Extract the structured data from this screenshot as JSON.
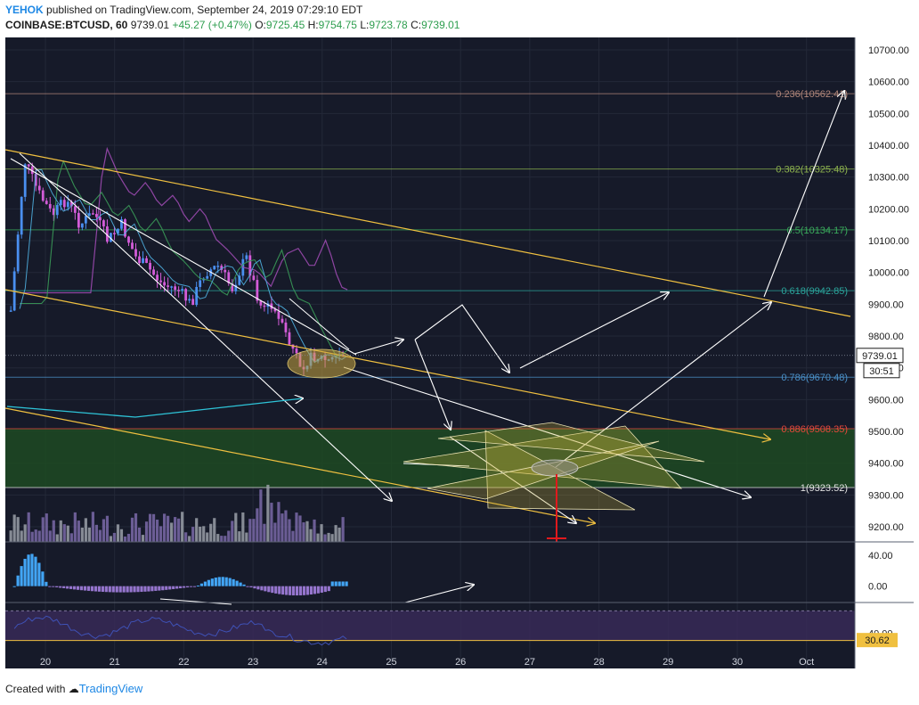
{
  "header": {
    "publisher": "YEHOK",
    "published_text": "published on TradingView.com, September 24, 2019 07:29:10 EDT",
    "symbol": "COINBASE:BTCUSD, 60",
    "last": "9739.01",
    "change": "+45.27 (+0.47%)",
    "open_label": "O:",
    "open": "9725.45",
    "high_label": "H:",
    "high": "9754.75",
    "low_label": "L:",
    "low": "9723.78",
    "close_label": "C:",
    "close": "9739.01"
  },
  "footer": {
    "created_with": "Created with",
    "brand": "TradingView"
  },
  "colors": {
    "background": "#161a29",
    "up_candle": "#4a8ff0",
    "down_candle": "#d35cd8",
    "trendline": "#f0c040",
    "arrow": "#ffffff",
    "target_zone": "#1d4a22",
    "macd_pos": "#42a5f5",
    "macd_neg": "#9575cd",
    "rsi": "#3f51b5",
    "red_marker": "#e0191d"
  },
  "chart_data": {
    "type": "candlestick",
    "title": "",
    "x_ticks": [
      "20",
      "21",
      "22",
      "23",
      "24",
      "25",
      "26",
      "27",
      "28",
      "29",
      "30",
      "Oct"
    ],
    "y_ticks": [
      "10700.00",
      "10600.00",
      "10500.00",
      "10400.00",
      "10300.00",
      "10200.00",
      "10100.00",
      "10000.00",
      "9900.00",
      "9800.00",
      "9700.00",
      "9600.00",
      "9500.00",
      "9400.00",
      "9300.00",
      "9200.00"
    ],
    "y_tick_values": [
      10700,
      10600,
      10500,
      10400,
      10300,
      10200,
      10100,
      10000,
      9900,
      9800,
      9700,
      9600,
      9500,
      9400,
      9300,
      9200
    ],
    "ylim": [
      9150,
      10740
    ],
    "price_label": "9739.01",
    "price_value": 9739.01,
    "countdown_label": "30:51",
    "fib_levels": [
      {
        "label": "0.236(10562.41)",
        "value": 10562.41,
        "color": "#b0867a"
      },
      {
        "label": "0.382(10325.48)",
        "value": 10325.48,
        "color": "#8bb04e"
      },
      {
        "label": "0.5(10134.17)",
        "value": 10134.17,
        "color": "#3aaa5c"
      },
      {
        "label": "0.618(9942.85)",
        "value": 9942.85,
        "color": "#2aa39a"
      },
      {
        "label": "0.786(9670.48)",
        "value": 9670.48,
        "color": "#4a90c8"
      },
      {
        "label": "0.886(9508.35)",
        "value": 9508.35,
        "color": "#e5483b"
      },
      {
        "label": "1(9323.52)",
        "value": 9323.52,
        "color": "#e0e0e0"
      }
    ],
    "target_zone": {
      "top": 9508.35,
      "bottom": 9323.52
    },
    "price_path": [
      [
        19.5,
        9880
      ],
      [
        19.7,
        10350
      ],
      [
        19.9,
        10250
      ],
      [
        20.1,
        10180
      ],
      [
        20.3,
        10230
      ],
      [
        20.5,
        10150
      ],
      [
        20.7,
        10190
      ],
      [
        20.9,
        10100
      ],
      [
        21.1,
        10150
      ],
      [
        21.3,
        10050
      ],
      [
        21.5,
        10010
      ],
      [
        21.7,
        9960
      ],
      [
        21.9,
        9950
      ],
      [
        22.1,
        9900
      ],
      [
        22.3,
        10000
      ],
      [
        22.5,
        10020
      ],
      [
        22.7,
        9950
      ],
      [
        22.9,
        10050
      ],
      [
        23.1,
        9900
      ],
      [
        23.3,
        9880
      ],
      [
        23.5,
        9790
      ],
      [
        23.7,
        9710
      ],
      [
        23.9,
        9740
      ],
      [
        24.1,
        9720
      ],
      [
        24.3,
        9750
      ]
    ],
    "macd": {
      "y_ticks": [
        "40.00",
        "0.00"
      ],
      "y_tick_values": [
        40,
        0
      ],
      "ylim": [
        -20,
        55
      ]
    },
    "rsi": {
      "y_ticks": [
        "40.00"
      ],
      "y_tick_values": [
        40
      ],
      "ylim": [
        20,
        80
      ],
      "value_label": "30.62",
      "value": 30.62
    }
  }
}
